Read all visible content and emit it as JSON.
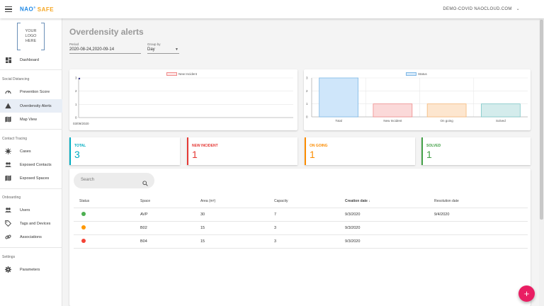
{
  "header": {
    "brand_nao": "NAO",
    "brand_reg": "®",
    "brand_safe": "SAFE",
    "account": "DEMO-COVID NAOCLOUD.COM"
  },
  "sidebar": {
    "logo_lines": [
      "YOUR",
      "LOGO",
      "HERE"
    ],
    "dashboard": "Dashboard",
    "sections": {
      "social": "Social Distancing",
      "contact": "Contact Tracing",
      "onboarding": "Onboarding",
      "settings": "Settings"
    },
    "items": {
      "prevention": "Prevention Score",
      "overdensity": "Overdensity Alerts",
      "map": "Map View",
      "cases": "Cases",
      "exposed_contacts": "Exposed Contacts",
      "exposed_spaces": "Exposed Spaces",
      "users": "Users",
      "tags": "Tags and Devices",
      "associations": "Associations",
      "parameters": "Parameters"
    }
  },
  "page": {
    "title": "Overdensity alerts",
    "period_label": "Period",
    "period_value": "2020-08-24,2020-09-14",
    "group_label": "Group by",
    "group_value": "Day"
  },
  "line_chart": {
    "legend": "New Incident",
    "legend_color": "#f8b4b4",
    "y_ticks": [
      "3",
      "2",
      "1",
      "0"
    ],
    "x_label": "03/09/2020"
  },
  "chart_data": {
    "type": "bar",
    "legend": "Status",
    "categories": [
      "Total",
      "New Incident",
      "On going",
      "Solved"
    ],
    "values": [
      3,
      1,
      1,
      1
    ],
    "ylim": [
      0,
      3
    ],
    "y_ticks": [
      "3",
      "2",
      "1",
      "0"
    ],
    "colors": [
      "#cfe6fa",
      "#fbd9d9",
      "#fde6cf",
      "#d4ecec"
    ],
    "borders": [
      "#7fb8e6",
      "#f08a8a",
      "#f5b87a",
      "#7dc7c7"
    ]
  },
  "stats": [
    {
      "label": "TOTAL",
      "value": "3",
      "color": "#00acc1"
    },
    {
      "label": "NEW INCIDENT",
      "value": "1",
      "color": "#e53935"
    },
    {
      "label": "ON GOING",
      "value": "1",
      "color": "#fb8c00"
    },
    {
      "label": "SOLVED",
      "value": "1",
      "color": "#43a047"
    }
  ],
  "search": {
    "placeholder": "Search"
  },
  "table": {
    "headers": {
      "status": "Status",
      "space": "Space",
      "area": "Area (m²)",
      "capacity": "Capacity",
      "creation": "Creation date",
      "resolution": "Resolution date"
    },
    "rows": [
      {
        "status_color": "#4caf50",
        "space": "AVP",
        "area": "30",
        "capacity": "7",
        "creation": "9/3/2020",
        "resolution": "9/4/2020"
      },
      {
        "status_color": "#ff9800",
        "space": "B02",
        "area": "15",
        "capacity": "3",
        "creation": "9/3/2020",
        "resolution": ""
      },
      {
        "status_color": "#f44336",
        "space": "B04",
        "area": "15",
        "capacity": "3",
        "creation": "9/3/2020",
        "resolution": ""
      }
    ]
  },
  "fab": {
    "label": "+"
  }
}
